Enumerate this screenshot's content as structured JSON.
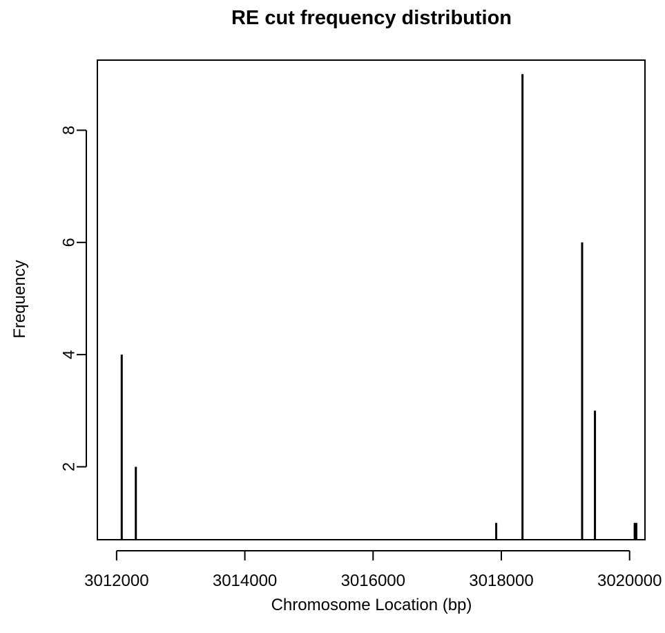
{
  "chart_data": {
    "type": "bar",
    "style": "histogram-spikes",
    "title": "RE cut frequency distribution",
    "xlabel": "Chromosome Location (bp)",
    "ylabel": "Frequency",
    "xlim": [
      3011700,
      3020240
    ],
    "ylim": [
      0.7,
      9.25
    ],
    "x_ticks": [
      3012000,
      3014000,
      3016000,
      3018000,
      3020000
    ],
    "x_tick_labels": [
      "3012000",
      "3014000",
      "3016000",
      "3018000",
      "3020000"
    ],
    "y_ticks": [
      2,
      4,
      6,
      8
    ],
    "y_tick_labels": [
      "2",
      "4",
      "6",
      "8"
    ],
    "grid": false,
    "legend": "none",
    "series": [
      {
        "x": [
          3012080,
          3012300,
          3017920,
          3018330,
          3019260,
          3019460,
          3020080,
          3020105
        ],
        "values": [
          4,
          2,
          1,
          9,
          6,
          3,
          1,
          1
        ]
      }
    ],
    "color": "#000000"
  }
}
